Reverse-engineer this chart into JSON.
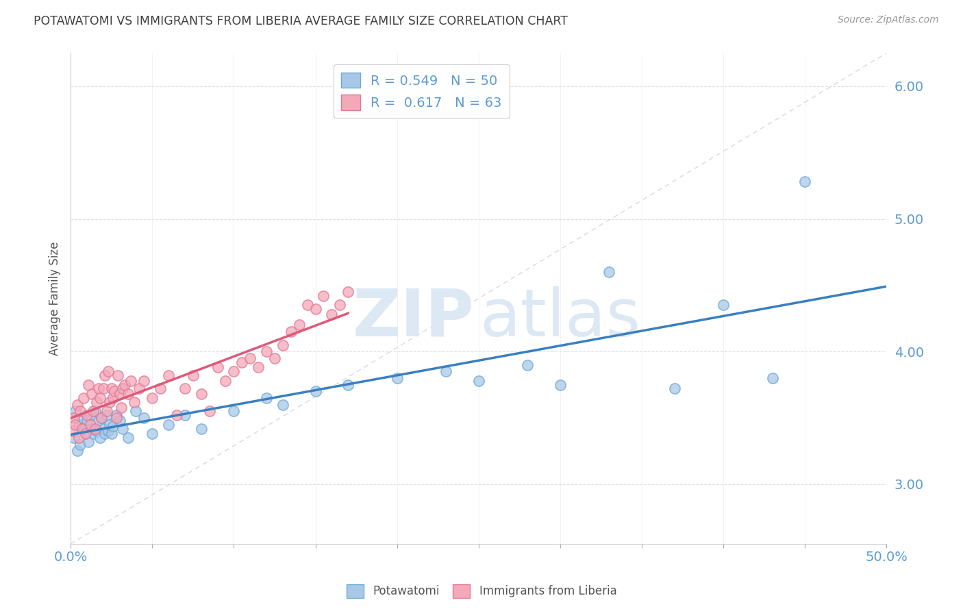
{
  "title": "POTAWATOMI VS IMMIGRANTS FROM LIBERIA AVERAGE FAMILY SIZE CORRELATION CHART",
  "source": "Source: ZipAtlas.com",
  "ylabel": "Average Family Size",
  "xlim": [
    0.0,
    50.0
  ],
  "ylim": [
    2.55,
    6.25
  ],
  "yticks": [
    3.0,
    4.0,
    5.0,
    6.0
  ],
  "xtick_positions": [
    0.0,
    5.0,
    10.0,
    15.0,
    20.0,
    25.0,
    30.0,
    35.0,
    40.0,
    45.0,
    50.0
  ],
  "series1_label": "Potawatomi",
  "series1_color": "#a8c8e8",
  "series1_edge": "#6aaad4",
  "series1_R": "0.549",
  "series1_N": "50",
  "series1_line_color": "#3a7fc1",
  "series2_label": "Immigrants from Liberia",
  "series2_color": "#f4a8b8",
  "series2_edge": "#e07898",
  "series2_R": "0.617",
  "series2_N": "63",
  "series2_line_color": "#e05878",
  "diagonal_color": "#d0d0d0",
  "background_color": "#ffffff",
  "grid_color": "#e0e0e0",
  "axis_color": "#5b9bd5",
  "title_color": "#404040",
  "watermark_color": "#dce8f4",
  "potawatomi_x": [
    0.2,
    0.3,
    0.4,
    0.5,
    0.6,
    0.7,
    0.8,
    0.9,
    1.0,
    1.1,
    1.2,
    1.3,
    1.4,
    1.5,
    1.6,
    1.7,
    1.8,
    1.9,
    2.0,
    2.1,
    2.2,
    2.3,
    2.4,
    2.5,
    2.6,
    2.8,
    3.0,
    3.2,
    3.5,
    4.0,
    4.5,
    5.0,
    6.0,
    7.0,
    8.0,
    10.0,
    12.0,
    13.0,
    15.0,
    17.0,
    20.0,
    23.0,
    25.0,
    28.0,
    30.0,
    33.0,
    37.0,
    40.0,
    43.0,
    45.0
  ],
  "potawatomi_y": [
    3.35,
    3.55,
    3.25,
    3.45,
    3.3,
    3.5,
    3.42,
    3.38,
    3.48,
    3.32,
    3.52,
    3.42,
    3.38,
    3.55,
    3.4,
    3.48,
    3.35,
    3.5,
    3.42,
    3.38,
    3.52,
    3.4,
    3.45,
    3.38,
    3.44,
    3.52,
    3.48,
    3.42,
    3.35,
    3.55,
    3.5,
    3.38,
    3.45,
    3.52,
    3.42,
    3.55,
    3.65,
    3.6,
    3.7,
    3.75,
    3.8,
    3.85,
    3.78,
    3.9,
    3.75,
    4.6,
    3.72,
    4.35,
    3.8,
    5.28
  ],
  "liberia_x": [
    0.1,
    0.2,
    0.3,
    0.4,
    0.5,
    0.6,
    0.7,
    0.8,
    0.9,
    1.0,
    1.1,
    1.2,
    1.3,
    1.4,
    1.5,
    1.6,
    1.7,
    1.8,
    1.9,
    2.0,
    2.1,
    2.2,
    2.3,
    2.4,
    2.5,
    2.6,
    2.7,
    2.8,
    2.9,
    3.0,
    3.1,
    3.2,
    3.3,
    3.5,
    3.7,
    3.9,
    4.2,
    4.5,
    5.0,
    5.5,
    6.0,
    6.5,
    7.0,
    7.5,
    8.0,
    8.5,
    9.0,
    9.5,
    10.0,
    10.5,
    11.0,
    11.5,
    12.0,
    12.5,
    13.0,
    13.5,
    14.0,
    14.5,
    15.0,
    15.5,
    16.0,
    16.5,
    17.0
  ],
  "liberia_y": [
    3.4,
    3.5,
    3.45,
    3.6,
    3.35,
    3.55,
    3.42,
    3.65,
    3.38,
    3.52,
    3.75,
    3.45,
    3.68,
    3.55,
    3.42,
    3.62,
    3.72,
    3.65,
    3.5,
    3.72,
    3.82,
    3.55,
    3.85,
    3.62,
    3.72,
    3.65,
    3.7,
    3.5,
    3.82,
    3.68,
    3.58,
    3.72,
    3.75,
    3.68,
    3.78,
    3.62,
    3.72,
    3.78,
    3.65,
    3.72,
    3.82,
    3.52,
    3.72,
    3.82,
    3.68,
    3.55,
    3.88,
    3.78,
    3.85,
    3.92,
    3.95,
    3.88,
    4.0,
    3.95,
    4.05,
    4.15,
    4.2,
    4.35,
    4.32,
    4.42,
    4.28,
    4.35,
    4.45
  ]
}
